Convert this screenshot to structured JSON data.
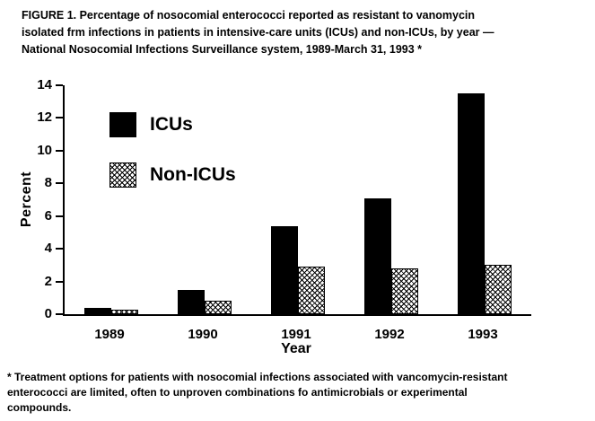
{
  "figure": {
    "title": "FIGURE 1. Percentage of nosocomial enterococci reported as resistant to vanomycin\nisolated frm infections in patients in intensive-care units (ICUs) and non-ICUs, by year —\nNational Nosocomial Infections Surveillance system, 1989-March 31, 1993 *",
    "footnote": "* Treatment options for patients with nosocomial infections associated with vancomycin-resistant\nenterococci are limited, often to unproven combinations fo antimicrobials or experimental\ncompounds."
  },
  "chart_data": {
    "type": "bar",
    "categories": [
      "1989",
      "1990",
      "1991",
      "1992",
      "1993"
    ],
    "series": [
      {
        "name": "ICUs",
        "style": "solid-black",
        "values": [
          0.4,
          1.5,
          5.4,
          7.1,
          13.5
        ]
      },
      {
        "name": "Non-ICUs",
        "style": "crosshatch",
        "values": [
          0.3,
          0.8,
          2.9,
          2.8,
          3.0
        ]
      }
    ],
    "title": "FIGURE 1. Percentage of nosocomial enterococci reported as resistant to vanomycin isolated frm infections in patients in intensive-care units (ICUs) and non-ICUs, by year — National Nosocomial Infections Surveillance system, 1989-March 31, 1993 *",
    "xlabel": "Year",
    "ylabel": "Percent",
    "ylim": [
      0,
      14
    ],
    "yticks": [
      0,
      2,
      4,
      6,
      8,
      10,
      12,
      14
    ],
    "grid": false,
    "legend_position": "upper-left-inside",
    "colors": {
      "bar_icus": "#000000",
      "bar_non_icus_pattern": "#000000",
      "background": "#ffffff"
    }
  }
}
